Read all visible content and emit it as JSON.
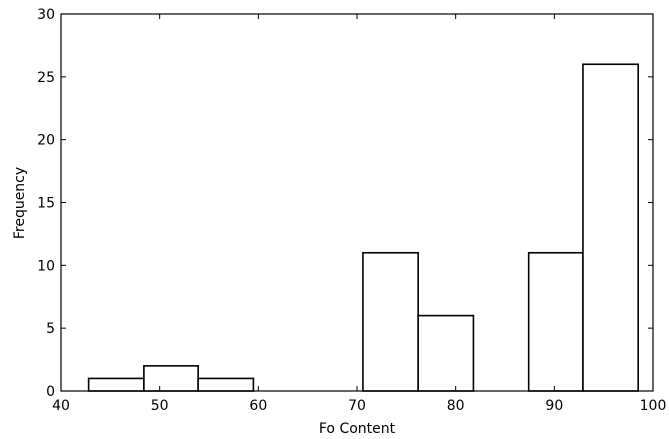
{
  "chart_data": {
    "type": "bar",
    "title": "",
    "xlabel": "Fo Content",
    "ylabel": "Frequency",
    "xlim": [
      40,
      100
    ],
    "ylim": [
      0,
      30
    ],
    "xticks": [
      40,
      50,
      60,
      70,
      80,
      90,
      100
    ],
    "yticks": [
      0,
      5,
      10,
      15,
      20,
      25,
      30
    ],
    "grid": false,
    "bins": [
      {
        "start": 42.8,
        "end": 48.4,
        "count": 1
      },
      {
        "start": 48.4,
        "end": 53.9,
        "count": 2
      },
      {
        "start": 53.9,
        "end": 59.5,
        "count": 1
      },
      {
        "start": 59.5,
        "end": 65.1,
        "count": 0
      },
      {
        "start": 65.1,
        "end": 70.6,
        "count": 0
      },
      {
        "start": 70.6,
        "end": 76.2,
        "count": 11
      },
      {
        "start": 76.2,
        "end": 81.8,
        "count": 6
      },
      {
        "start": 81.8,
        "end": 87.4,
        "count": 0
      },
      {
        "start": 87.4,
        "end": 92.9,
        "count": 11
      },
      {
        "start": 92.9,
        "end": 98.5,
        "count": 26
      }
    ]
  }
}
